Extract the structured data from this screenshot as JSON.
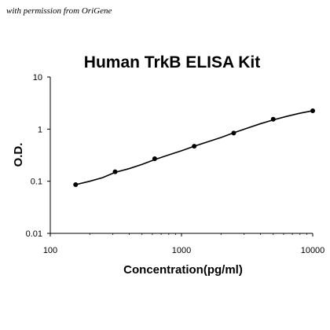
{
  "credit": "with permission from OriGene",
  "chart_data": {
    "type": "scatter",
    "title": "Human TrkB ELISA Kit",
    "xlabel": "Concentration(pg/ml)",
    "ylabel": "O.D.",
    "xscale": "log",
    "yscale": "log",
    "xlim": [
      100,
      10000
    ],
    "ylim": [
      0.01,
      10
    ],
    "xticks": [
      100,
      1000,
      10000
    ],
    "xtick_labels": [
      "100",
      "1000",
      "10000"
    ],
    "yticks": [
      0.01,
      0.1,
      1,
      10
    ],
    "ytick_labels": [
      "0.01",
      "0.1",
      "1",
      "10"
    ],
    "grid": false,
    "legend": "none",
    "series": [
      {
        "points": [
          {
            "x": 156,
            "y": 0.086
          },
          {
            "x": 312,
            "y": 0.152
          },
          {
            "x": 625,
            "y": 0.27
          },
          {
            "x": 1250,
            "y": 0.47
          },
          {
            "x": 2500,
            "y": 0.84
          },
          {
            "x": 5000,
            "y": 1.55
          },
          {
            "x": 10000,
            "y": 2.25
          }
        ],
        "fit_curve": [
          {
            "x": 156,
            "y": 0.086
          },
          {
            "x": 200,
            "y": 0.1
          },
          {
            "x": 250,
            "y": 0.117
          },
          {
            "x": 312,
            "y": 0.148
          },
          {
            "x": 400,
            "y": 0.175
          },
          {
            "x": 500,
            "y": 0.21
          },
          {
            "x": 625,
            "y": 0.26
          },
          {
            "x": 800,
            "y": 0.32
          },
          {
            "x": 1000,
            "y": 0.385
          },
          {
            "x": 1250,
            "y": 0.47
          },
          {
            "x": 1600,
            "y": 0.575
          },
          {
            "x": 2000,
            "y": 0.69
          },
          {
            "x": 2500,
            "y": 0.85
          },
          {
            "x": 3200,
            "y": 1.05
          },
          {
            "x": 4000,
            "y": 1.27
          },
          {
            "x": 5000,
            "y": 1.5
          },
          {
            "x": 6300,
            "y": 1.75
          },
          {
            "x": 8000,
            "y": 2.02
          },
          {
            "x": 10000,
            "y": 2.25
          }
        ],
        "color": "#000000"
      }
    ]
  }
}
